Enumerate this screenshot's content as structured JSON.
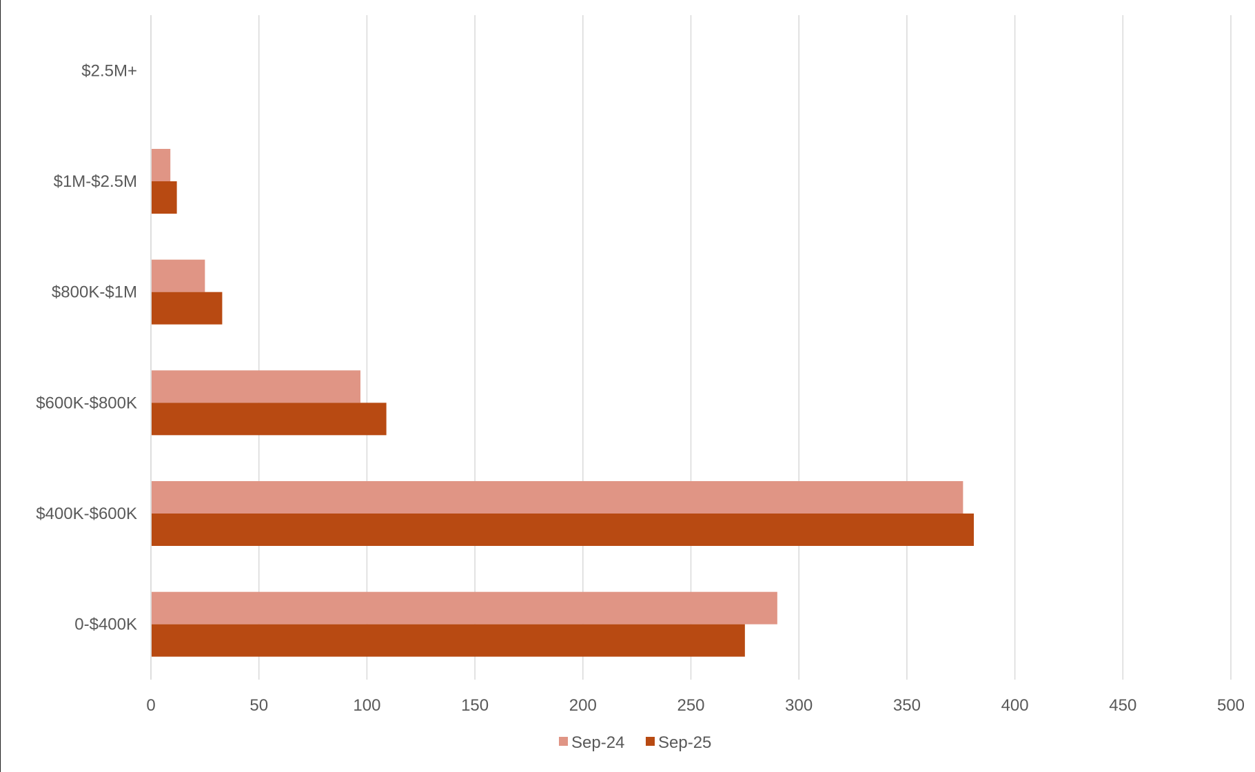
{
  "chart_data": {
    "type": "bar",
    "orientation": "horizontal",
    "categories": [
      "$2.5M+",
      "$1M-$2.5M",
      "$800K-$1M",
      "$600K-$800K",
      "$400K-$600K",
      "0-$400K"
    ],
    "series": [
      {
        "name": "Sep-24",
        "color": "#E09585",
        "values": [
          0,
          9,
          25,
          97,
          376,
          290
        ]
      },
      {
        "name": "Sep-25",
        "color": "#B84A12",
        "values": [
          0,
          12,
          33,
          109,
          381,
          275
        ]
      }
    ],
    "xlim": [
      0,
      500
    ],
    "x_ticks": [
      0,
      50,
      100,
      150,
      200,
      250,
      300,
      350,
      400,
      450,
      500
    ],
    "x_tick_labels": [
      "0",
      "50",
      "100",
      "150",
      "200",
      "250",
      "300",
      "350",
      "400",
      "450",
      "500"
    ],
    "grid": true,
    "gridline_color": "#D9D9D9",
    "legend_position": "bottom-center",
    "title": "",
    "xlabel": "",
    "ylabel": ""
  }
}
